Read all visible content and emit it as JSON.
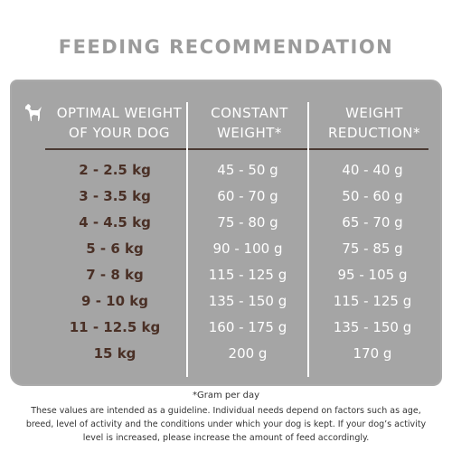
{
  "title": "FEEDING RECOMMENDATION",
  "headers": {
    "weight_line1": "OPTIMAL WEIGHT",
    "weight_line2": "OF YOUR DOG",
    "constant_line1": "CONSTANT",
    "constant_line2": "WEIGHT*",
    "reduction_line1": "WEIGHT",
    "reduction_line2": "REDUCTION*"
  },
  "icon": "dog-icon",
  "rows": [
    {
      "weight": "2 - 2.5 kg",
      "constant": "45 - 50 g",
      "reduction": "40 - 40 g"
    },
    {
      "weight": "3 - 3.5 kg",
      "constant": "60 - 70 g",
      "reduction": "50 - 60 g"
    },
    {
      "weight": "4 - 4.5 kg",
      "constant": "75 - 80 g",
      "reduction": "65 - 70 g"
    },
    {
      "weight": "5 - 6 kg",
      "constant": "90 - 100 g",
      "reduction": "75 - 85 g"
    },
    {
      "weight": "7 - 8 kg",
      "constant": "115 - 125 g",
      "reduction": "95 - 105 g"
    },
    {
      "weight": "9 - 10 kg",
      "constant": "135 - 150 g",
      "reduction": "115 - 125 g"
    },
    {
      "weight": "11 - 12.5 kg",
      "constant": "160 - 175 g",
      "reduction": "135 - 150 g"
    },
    {
      "weight": "15 kg",
      "constant": "200 g",
      "reduction": "170 g"
    }
  ],
  "footnote_star": "*Gram per day",
  "footnote": "These values are intended as a guideline. Individual needs depend on factors such as age, breed, level of activity and the conditions under which your dog is kept. If your dog’s activity level is increased, please increase the amount of feed accordingly.",
  "colors": {
    "panel": "#a5a5a5",
    "title": "#9b9b9b",
    "weight_text": "#4a3026"
  }
}
